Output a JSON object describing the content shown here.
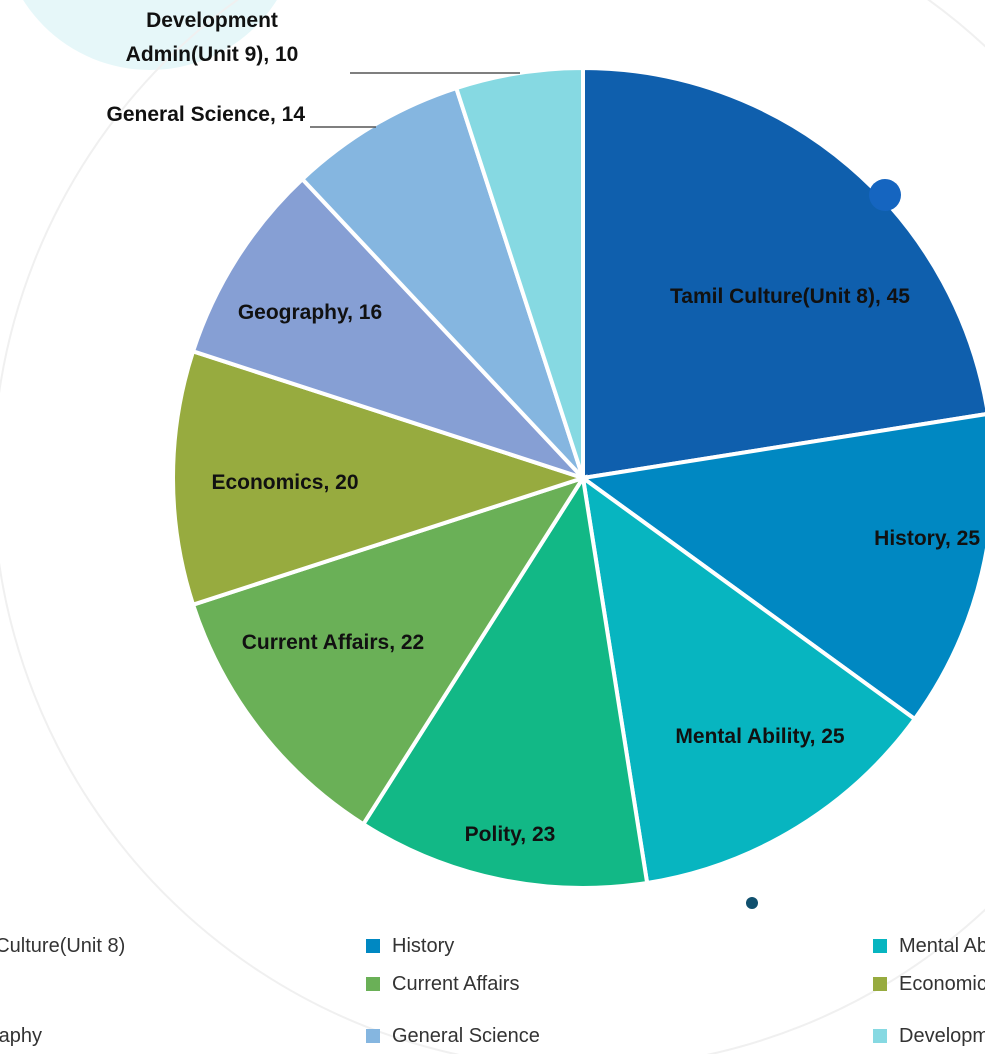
{
  "chart_data": {
    "type": "pie",
    "categories": [
      "Tamil Culture(Unit 8)",
      "History",
      "Mental Ability",
      "Polity",
      "Current Affairs",
      "Economics",
      "Geography",
      "General Science",
      "Development Admin(Unit 9)"
    ],
    "values": [
      45,
      25,
      25,
      23,
      22,
      20,
      16,
      14,
      10
    ],
    "colors": [
      "#0f5fad",
      "#0088c2",
      "#07b5c0",
      "#12b886",
      "#6ab057",
      "#97ab3f",
      "#869fd4",
      "#85b6e0",
      "#86d9e2"
    ]
  }
}
